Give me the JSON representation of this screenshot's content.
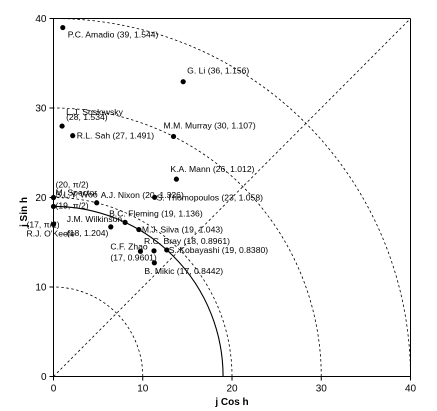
{
  "chart_data": {
    "type": "scatter",
    "xlabel": "j Cos h",
    "ylabel": "j Sin h",
    "xlim": [
      0,
      40
    ],
    "ylim": [
      0,
      40
    ],
    "x_ticks": [
      "0",
      "10",
      "20",
      "30",
      "40"
    ],
    "y_ticks": [
      "0",
      "10",
      "20",
      "30",
      "40"
    ],
    "grid": false,
    "points": [
      {
        "label": "P.C. Amadio (39, 1.544)",
        "x": 1.04,
        "y": 38.99
      },
      {
        "label": "G. Li (36, 1.156)",
        "x": 14.53,
        "y": 32.94
      },
      {
        "label": "(28, 1.534)",
        "x": 0.96,
        "y": 27.98
      },
      {
        "label": "L.J. Soslowsky",
        "x": 0.96,
        "y": 27.98
      },
      {
        "label": "R.L. Sah (27, 1.491)",
        "x": 2.15,
        "y": 26.91
      },
      {
        "label": "M.M. Murray (30, 1.107)",
        "x": 13.45,
        "y": 26.82
      },
      {
        "label": "K.A. Mann (26, 1.012)",
        "x": 13.77,
        "y": 22.05
      },
      {
        "label": "S. Thomopoulos (23, 1.058)",
        "x": 11.33,
        "y": 20.02
      },
      {
        "label": "(20, π/2)",
        "x": 0.0,
        "y": 20.0
      },
      {
        "label": "M. Spector",
        "x": 0.0,
        "y": 20.0
      },
      {
        "label": "A.J. Nixon (20, 1.326)",
        "x": 4.84,
        "y": 19.41
      },
      {
        "label": "S.L.Y. Woo",
        "x": 0.0,
        "y": 19.0
      },
      {
        "label": "(19, π/2)",
        "x": 0.0,
        "y": 19.0
      },
      {
        "label": "B.C. Fleming (19, 1.136)",
        "x": 8.02,
        "y": 17.22
      },
      {
        "label": "M.J. Silva (19, 1.043)",
        "x": 9.56,
        "y": 16.42
      },
      {
        "label": "(17, π/2)",
        "x": 0.0,
        "y": 17.0
      },
      {
        "label": "R.J. O'Keefe",
        "x": 0.0,
        "y": 17.0
      },
      {
        "label": "J.M. Wilkinson",
        "x": 6.42,
        "y": 16.72
      },
      {
        "label": "(18, 1.204)",
        "x": 6.42,
        "y": 16.72
      },
      {
        "label": "R.C. Bray (18, 0.8961)",
        "x": 11.26,
        "y": 14.04
      },
      {
        "label": "C.F. Zhao",
        "x": 9.74,
        "y": 13.99
      },
      {
        "label": "(17, 0.9601)",
        "x": 9.74,
        "y": 13.99
      },
      {
        "label": "S. Kobayashi (19, 0.8380)",
        "x": 12.69,
        "y": 14.14
      },
      {
        "label": "B. Mikic (17, 0.8442)",
        "x": 11.3,
        "y": 12.7
      }
    ],
    "reference_arcs_radius": [
      10,
      20,
      30,
      40
    ],
    "diagonal": {
      "from": [
        0,
        0
      ],
      "to": [
        40,
        40
      ]
    },
    "solid_curve": {
      "radius": 19
    }
  }
}
